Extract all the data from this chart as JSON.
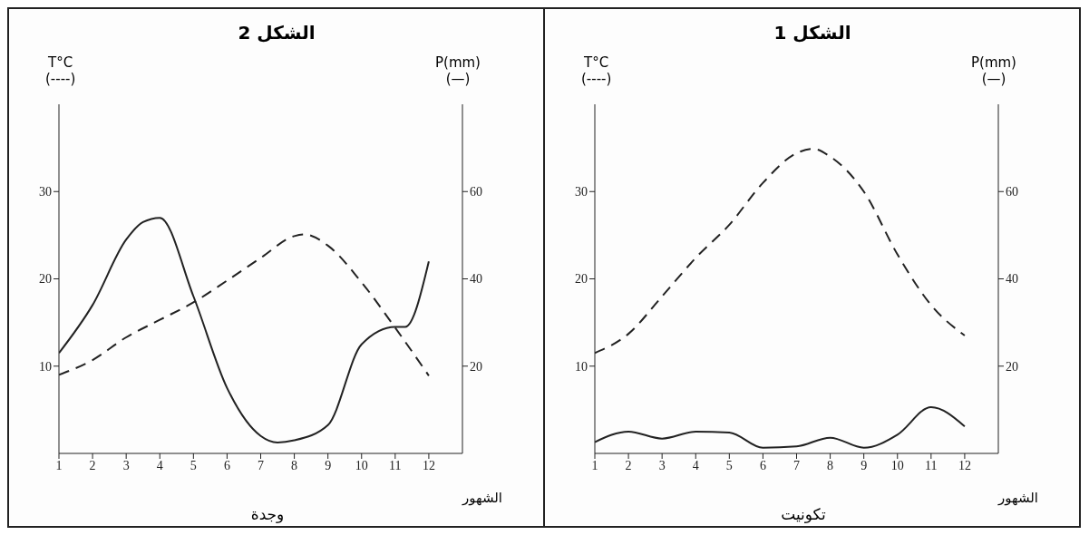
{
  "chart_data": [
    {
      "type": "line",
      "title": "الشكل 2",
      "ylabel": "T°C\n(----)",
      "y2label": "P(mm)\n(—)",
      "xlabel": "الشهور",
      "annotations": [
        "وجدة"
      ],
      "xlim": [
        1,
        13
      ],
      "xticks": [
        1,
        2,
        3,
        4,
        5,
        6,
        7,
        8,
        9,
        10,
        11,
        12
      ],
      "ylim": [
        0,
        40
      ],
      "yticks": [
        10,
        20,
        30
      ],
      "y2lim": [
        0,
        80
      ],
      "y2ticks": [
        20,
        40,
        60
      ],
      "grid": false,
      "legend": false,
      "marker": "none",
      "series": [
        {
          "color": "#222222",
          "line_style": "dashed",
          "x": [
            1,
            2,
            3,
            4,
            5,
            6,
            7,
            8,
            8.3,
            9,
            10,
            11,
            12
          ],
          "values": [
            9,
            10.7,
            13.3,
            15.3,
            17.3,
            19.8,
            22.4,
            24.9,
            25.1,
            23.8,
            19.6,
            14.4,
            8.9
          ]
        },
        {
          "color": "#222222",
          "line_style": "solid",
          "axis": "y2",
          "x": [
            1,
            2,
            3,
            3.5,
            4,
            5,
            6,
            7,
            7.5,
            8,
            9,
            10,
            11,
            11.3,
            12
          ],
          "values": [
            23,
            34,
            49,
            53,
            54,
            36,
            15,
            4,
            2.5,
            3,
            6.5,
            25,
            29,
            29,
            44
          ]
        }
      ]
    },
    {
      "type": "line",
      "title": "الشكل 1",
      "ylabel": "T°C\n(----)",
      "y2label": "P(mm)\n(—)",
      "xlabel": "الشهور",
      "annotations": [
        "تكونيت"
      ],
      "xlim": [
        1,
        13
      ],
      "xticks": [
        1,
        2,
        3,
        4,
        5,
        6,
        7,
        8,
        9,
        10,
        11,
        12
      ],
      "ylim": [
        0,
        40
      ],
      "yticks": [
        10,
        20,
        30
      ],
      "y2lim": [
        0,
        80
      ],
      "y2ticks": [
        20,
        40,
        60
      ],
      "grid": false,
      "legend": false,
      "marker": "none",
      "series": [
        {
          "color": "#222222",
          "line_style": "dashed",
          "x": [
            1,
            2,
            3,
            4,
            5,
            6,
            7,
            7.5,
            8,
            9,
            10,
            11,
            12
          ],
          "values": [
            11.5,
            13.7,
            18,
            22.4,
            26.2,
            31,
            34.4,
            34.9,
            34,
            30,
            22.8,
            17,
            13.5
          ]
        },
        {
          "color": "#222222",
          "line_style": "solid",
          "axis": "y2",
          "x": [
            1,
            2,
            3,
            4,
            5,
            6,
            7,
            8,
            9,
            10,
            11,
            12
          ],
          "values": [
            2.6,
            5,
            3.4,
            5,
            4.8,
            1.3,
            1.6,
            3.6,
            1.3,
            4.3,
            10.6,
            6.2
          ]
        }
      ]
    }
  ]
}
